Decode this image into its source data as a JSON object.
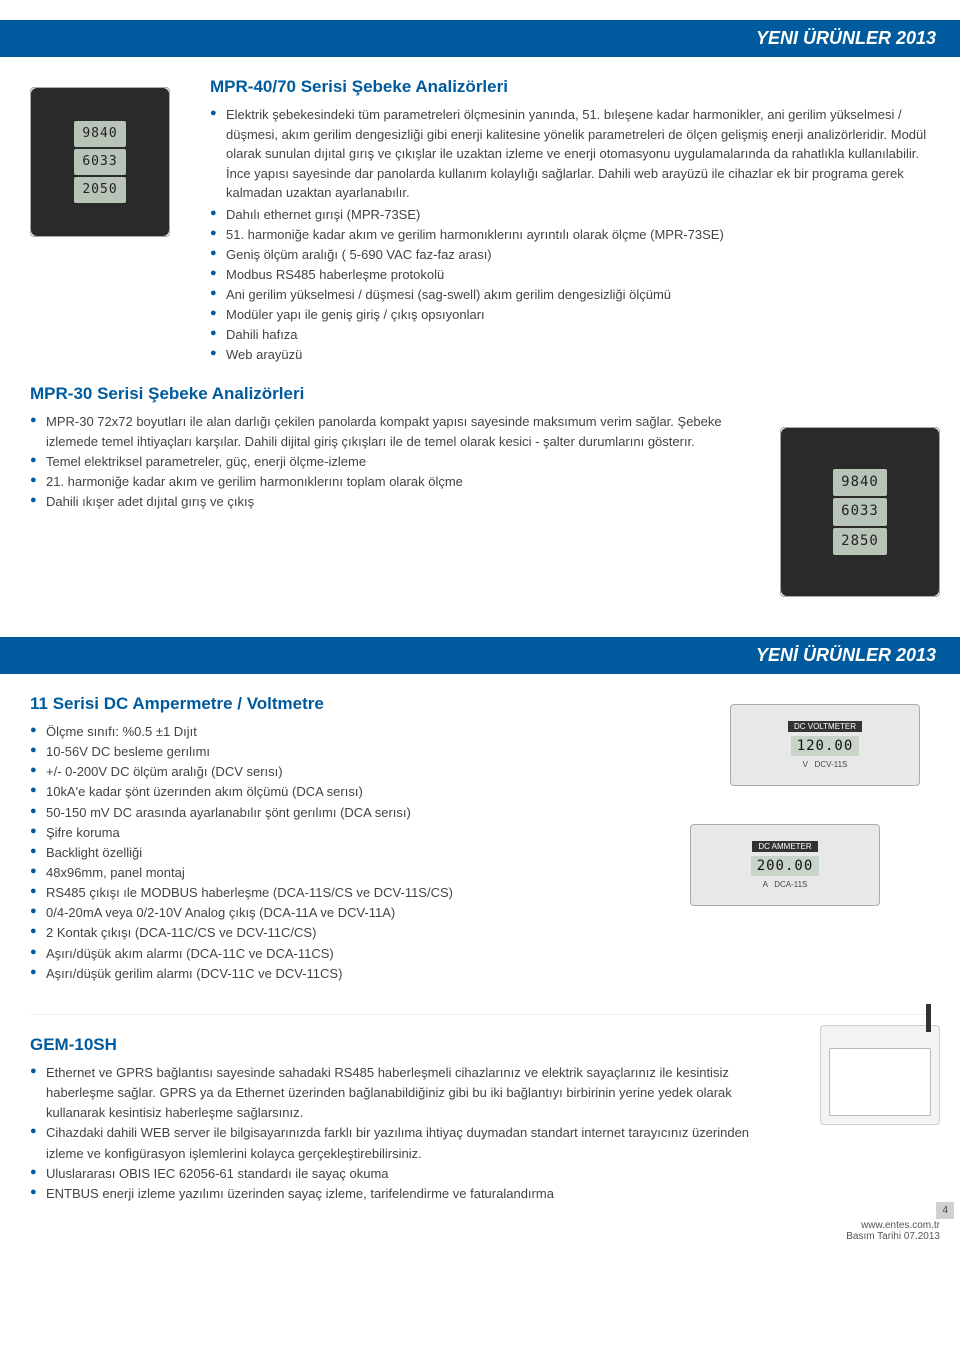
{
  "banners": {
    "top": "YENI ÜRÜNLER 2013",
    "mid": "YENİ ÜRÜNLER 2013"
  },
  "section1": {
    "title": "MPR-40/70 Serisi Şebeke Analizörleri",
    "intro": "Elektrik şebekesindeki tüm parametreleri ölçmesinin yanında, 51. bıleşene kadar harmonikler, ani gerilim yükselmesi / düşmesi, akım gerilim dengesizliği gibi enerji kalitesine yönelik parametreleri de ölçen gelişmiş enerji analizörleridir. Modül olarak sunulan dıjıtal gırış ve çıkışlar ile  uzaktan izleme ve enerji otomasyonu uygulamalarında da rahatlıkla kullanılabilir. İnce yapısı sayesinde dar panolarda kullanım kolaylığı sağlarlar. Dahili web arayüzü ile cihazlar ek bir programa gerek kalmadan uzaktan ayarlanabılır.",
    "bullets": [
      "Dahılı ethernet gırışi (MPR-73SE)",
      "51. harmoniğe kadar akım ve gerilim harmonıklerını ayrıntılı olarak ölçme (MPR-73SE)",
      "Geniş ölçüm aralığı ( 5-690 VAC faz-faz arası)",
      "Modbus RS485 haberleşme protokolü",
      "Ani gerilim yükselmesi / düşmesi (sag-swell) akım gerilim dengesizliği ölçümü",
      "Modüler yapı ile geniş giriş / çıkış opsıyonları",
      "Dahili hafıza",
      "Web arayüzü"
    ],
    "meter1": {
      "l1": "9840",
      "l2": "6033",
      "l3": "2050"
    },
    "meter2": {
      "l1": "9840",
      "l2": "6033",
      "l3": "2850"
    }
  },
  "section2": {
    "title": "MPR-30 Serisi Şebeke Analizörleri",
    "bullets": [
      "MPR-30 72x72 boyutları ile alan darlığı çekilen panolarda kompakt yapısı sayesinde maksımum verim sağlar. Şebeke izlemede temel ihtiyaçları karşılar. Dahili  dijital giriş  çıkışları ile de temel olarak kesici - şalter durumlarını gösterır.",
      "Temel elektriksel  parametreler, güç, enerji ölçme-izleme",
      "21. harmoniğe kadar akım ve gerilim harmonıklerını toplam olarak ölçme",
      "Dahili ıkışer adet dıjıtal gırış ve çıkış"
    ]
  },
  "section3": {
    "title": "11 Serisi DC Ampermetre / Voltmetre",
    "bullets": [
      "Ölçme sınıfı: %0.5 ±1 Dıjıt",
      "10-56V DC besleme gerılımı",
      "+/- 0-200V DC ölçüm aralığı (DCV serısı)",
      "10kA'e kadar şönt üzerınden akım ölçümü (DCA serısı)",
      "50-150 mV DC arasında ayarlanabılır şönt gerılımı (DCA serısı)",
      "Şifre koruma",
      "Backlight özelliği",
      "48x96mm, panel montaj",
      "RS485 çıkışı ıle MODBUS haberleşme (DCA-11S/CS ve DCV-11S/CS)",
      "0/4-20mA veya 0/2-10V Analog çıkış (DCA-11A ve DCV-11A)",
      "2 Kontak çıkışı (DCA-11C/CS ve DCV-11C/CS)",
      "Aşırı/düşük akım alarmı (DCA-11C ve DCA-11CS)",
      "Aşırı/düşük gerilim alarmı (DCV-11C ve DCV-11CS)"
    ],
    "meter_top": {
      "title": "DC VOLTMETER",
      "value": "120.00",
      "unit": "V",
      "model": "DCV-11S"
    },
    "meter_bot": {
      "title": "DC AMMETER",
      "value": "200.00",
      "unit": "A",
      "model": "DCA-11S"
    }
  },
  "section4": {
    "title": "GEM-10SH",
    "bullets": [
      "Ethernet ve GPRS bağlantısı sayesinde sahadaki RS485 haberleşmeli cihazlarınız ve elektrik sayaçlarınız ile kesintisiz haberleşme sağlar. GPRS ya da Ethernet üzerinden bağlanabildiğiniz gibi bu iki bağlantıyı birbirinin yerine yedek olarak kullanarak kesintisiz haberleşme sağlarsınız.",
      "Cihazdaki dahili WEB server ile bilgisayarınızda farklı bir yazılıma ihtiyaç duymadan standart internet tarayıcınız üzerinden izleme ve konfigürasyon işlemlerini kolayca gerçekleştirebilirsiniz.",
      "Uluslararası OBIS  IEC 62056-61 standardı ile sayaç okuma",
      "ENTBUS enerji izleme yazılımı üzerinden sayaç izleme, tarifelendirme ve faturalandırma"
    ]
  },
  "footer": {
    "url": "www.entes.com.tr",
    "date": "Basım Tarihi 07.2013",
    "page": "4"
  },
  "colors": {
    "brand": "#005a9e"
  }
}
